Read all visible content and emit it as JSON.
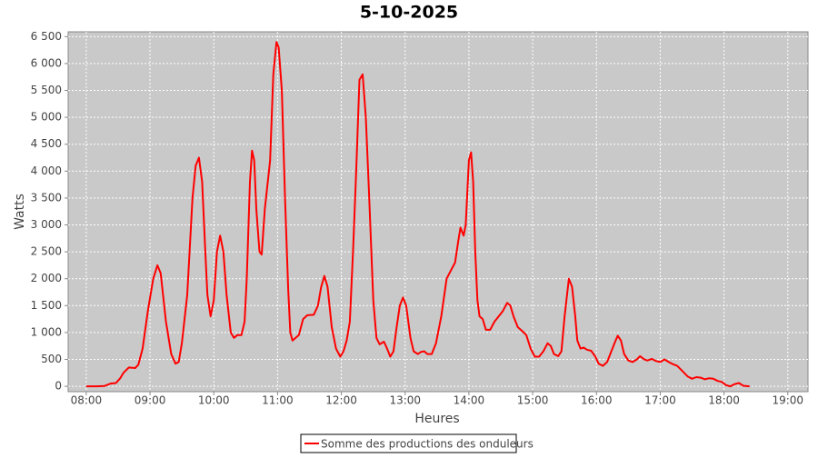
{
  "chart_data": {
    "type": "line",
    "title": "5-10-2025",
    "x_label": "Heures",
    "y_label": "Watts",
    "x": [
      480,
      490,
      497,
      503,
      508,
      512,
      515,
      520,
      526,
      529,
      533,
      538,
      543,
      547,
      550,
      555,
      560,
      564,
      567,
      570,
      575,
      580,
      583,
      586,
      589,
      592,
      594,
      597,
      600,
      603,
      606,
      609,
      612,
      616,
      619,
      622,
      626,
      629,
      631,
      634,
      636,
      638,
      640,
      643,
      645,
      648,
      653,
      656,
      659,
      661,
      664,
      667,
      670,
      672,
      674,
      677,
      680,
      684,
      688,
      694,
      698,
      701,
      704,
      707,
      711,
      715,
      719,
      722,
      725,
      728,
      731,
      734,
      737,
      740,
      743,
      746,
      750,
      753,
      756,
      760,
      763,
      766,
      769,
      772,
      775,
      778,
      781,
      785,
      788,
      792,
      795,
      798,
      801,
      805,
      809,
      814,
      819,
      823,
      827,
      830,
      832,
      835,
      837,
      840,
      842,
      844,
      846,
      848,
      850,
      853,
      856,
      860,
      864,
      868,
      872,
      876,
      879,
      882,
      886,
      890,
      894,
      898,
      902,
      906,
      910,
      914,
      917,
      920,
      924,
      927,
      930,
      934,
      937,
      940,
      942,
      945,
      948,
      951,
      955,
      959,
      962,
      966,
      970,
      974,
      978,
      980,
      983,
      986,
      990,
      994,
      998,
      1001,
      1005,
      1008,
      1012,
      1016,
      1020,
      1024,
      1028,
      1032,
      1036,
      1040,
      1046,
      1050,
      1054,
      1058,
      1062,
      1066,
      1070,
      1074,
      1078,
      1082,
      1086,
      1090,
      1094,
      1098,
      1104
    ],
    "series": [
      {
        "name": "Somme des productions des onduleurs",
        "color": "#ff0000",
        "values": [
          0,
          0,
          5,
          50,
          60,
          150,
          250,
          350,
          340,
          400,
          700,
          1400,
          2000,
          2250,
          2100,
          1200,
          600,
          420,
          450,
          800,
          1700,
          3500,
          4100,
          4250,
          3800,
          2500,
          1700,
          1300,
          1600,
          2500,
          2800,
          2500,
          1700,
          1000,
          900,
          950,
          950,
          1200,
          2000,
          3800,
          4380,
          4200,
          3300,
          2500,
          2450,
          3300,
          4200,
          5800,
          6400,
          6300,
          5500,
          3500,
          1800,
          1000,
          850,
          900,
          950,
          1250,
          1320,
          1330,
          1500,
          1850,
          2050,
          1850,
          1100,
          700,
          550,
          650,
          850,
          1200,
          2500,
          4000,
          5700,
          5800,
          5000,
          3600,
          1600,
          900,
          780,
          830,
          700,
          550,
          650,
          1100,
          1500,
          1650,
          1500,
          900,
          650,
          600,
          640,
          650,
          600,
          600,
          800,
          1300,
          2000,
          2150,
          2300,
          2700,
          2950,
          2800,
          3000,
          4200,
          4350,
          3800,
          2500,
          1600,
          1300,
          1250,
          1050,
          1050,
          1200,
          1300,
          1400,
          1550,
          1500,
          1300,
          1100,
          1030,
          950,
          700,
          550,
          550,
          650,
          800,
          750,
          600,
          560,
          650,
          1300,
          2000,
          1850,
          1300,
          850,
          700,
          720,
          680,
          660,
          550,
          420,
          380,
          450,
          650,
          850,
          940,
          850,
          600,
          480,
          450,
          500,
          560,
          500,
          480,
          510,
          470,
          450,
          500,
          450,
          410,
          380,
          300,
          180,
          140,
          170,
          160,
          130,
          150,
          140,
          100,
          80,
          20,
          0,
          40,
          60,
          10,
          0
        ]
      }
    ],
    "xlim": [
      463,
      1159
    ],
    "xticks": [
      {
        "value": 480,
        "label": "08:00"
      },
      {
        "value": 540,
        "label": "09:00"
      },
      {
        "value": 600,
        "label": "10:00"
      },
      {
        "value": 660,
        "label": "11:00"
      },
      {
        "value": 720,
        "label": "12:00"
      },
      {
        "value": 780,
        "label": "13:00"
      },
      {
        "value": 840,
        "label": "14:00"
      },
      {
        "value": 900,
        "label": "15:00"
      },
      {
        "value": 960,
        "label": "16:00"
      },
      {
        "value": 1020,
        "label": "17:00"
      },
      {
        "value": 1080,
        "label": "18:00"
      },
      {
        "value": 1140,
        "label": "19:00"
      }
    ],
    "ylim": [
      -100,
      6590
    ],
    "yticks": [
      0,
      500,
      {
        "value": 1000,
        "label": "1 000"
      },
      {
        "value": 1500,
        "label": "1 500"
      },
      {
        "value": 2000,
        "label": "2 000"
      },
      {
        "value": 2500,
        "label": "2 500"
      },
      {
        "value": 3000,
        "label": "3 000"
      },
      {
        "value": 3500,
        "label": "3 500"
      },
      {
        "value": 4000,
        "label": "4 000"
      },
      {
        "value": 4500,
        "label": "4 500"
      },
      {
        "value": 5000,
        "label": "5 000"
      },
      {
        "value": 5500,
        "label": "5 500"
      },
      {
        "value": 6000,
        "label": "6 000"
      },
      {
        "value": 6500,
        "label": "6 500"
      }
    ],
    "grid": true
  }
}
